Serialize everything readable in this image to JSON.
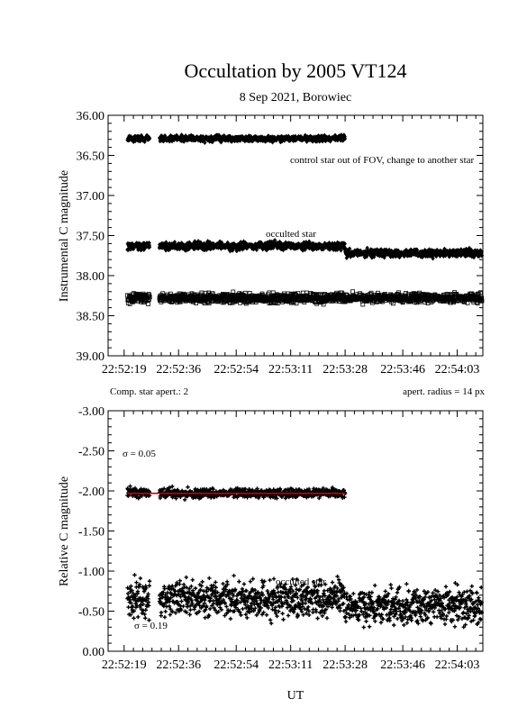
{
  "title": "Occultation by 2005 VT124",
  "subtitle": "8 Sep 2021, Borowiec",
  "xlabel": "UT",
  "x_tick_labels": [
    "22:52:19",
    "22:52:36",
    "22:52:54",
    "22:53:11",
    "22:53:28",
    "22:53:46",
    "22:54:03"
  ],
  "chart_data": [
    {
      "type": "scatter",
      "ylabel": "Instrumental C magnitude",
      "ylim": [
        39.0,
        36.0
      ],
      "y_inverted": true,
      "xlim": [
        "22:52:14",
        "22:54:11"
      ],
      "y_tick_labels": [
        "36.00",
        "36.50",
        "37.00",
        "37.50",
        "38.00",
        "38.50",
        "39.00"
      ],
      "annotations": {
        "control_note": "control star out of FOV, change to another star",
        "occulted_label": "occulted star",
        "left_note": "Comp. star apert.: 2",
        "right_note": "apert. radius = 14 px"
      },
      "series": [
        {
          "marker": "diamond",
          "x_range": [
            "22:52:20",
            "22:53:28"
          ],
          "y_mean": 36.29,
          "scatter": 0.03,
          "gap": [
            "22:52:27",
            "22:52:30"
          ]
        },
        {
          "marker": "diamond",
          "x_range": [
            "22:52:20",
            "22:54:11"
          ],
          "y_mean": 37.63,
          "y_mean_after_22_53_28": 37.72,
          "scatter": 0.04,
          "gap": [
            "22:52:27",
            "22:52:30"
          ]
        },
        {
          "marker": "square",
          "x_range": [
            "22:52:20",
            "22:54:11"
          ],
          "y_mean": 38.28,
          "scatter": 0.05,
          "gap": [
            "22:52:27",
            "22:52:30"
          ]
        }
      ]
    },
    {
      "type": "scatter",
      "ylabel": "Relative C magnitude",
      "ylim": [
        0.0,
        -3.0
      ],
      "y_inverted": true,
      "xlim": [
        "22:52:14",
        "22:54:11"
      ],
      "y_tick_labels": [
        "-3.00",
        "-2.50",
        "-2.00",
        "-1.50",
        "-1.00",
        "-0.50",
        "0.00"
      ],
      "annotations": {
        "sigma_top": "σ = 0.05",
        "sigma_bottom": "σ = 0.19",
        "occulted_label": "occulted star"
      },
      "series": [
        {
          "marker": "plus",
          "x_range": [
            "22:52:20",
            "22:53:28"
          ],
          "y_mean": -1.97,
          "scatter": 0.05,
          "fit_line": -1.97,
          "fit_color": "#cc0000",
          "gap": [
            "22:52:27",
            "22:52:30"
          ]
        },
        {
          "marker": "plus",
          "x_range": [
            "22:52:20",
            "22:54:11"
          ],
          "y_mean": -0.65,
          "y_mean_after_22_53_28": -0.56,
          "scatter": 0.19,
          "gap": [
            "22:52:27",
            "22:52:30"
          ]
        }
      ]
    }
  ]
}
